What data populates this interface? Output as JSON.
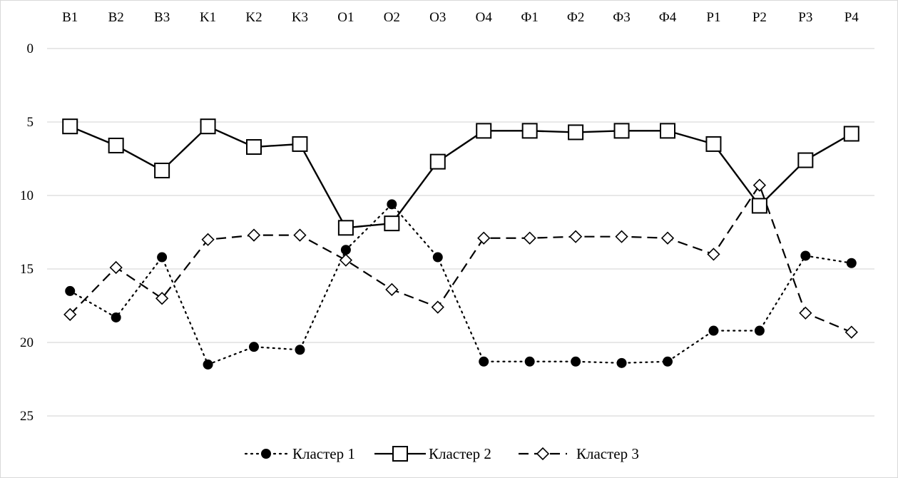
{
  "chart_data": {
    "type": "line",
    "categories": [
      "B1",
      "B2",
      "B3",
      "K1",
      "K2",
      "K3",
      "O1",
      "O2",
      "O3",
      "O4",
      "Ф1",
      "Ф2",
      "Ф3",
      "Ф4",
      "P1",
      "P2",
      "P3",
      "P4"
    ],
    "x_axis_position": "top",
    "y_axis": {
      "reversed": true,
      "ylim": [
        0,
        27.5
      ],
      "ticks": [
        0,
        5,
        10,
        15,
        20,
        25
      ]
    },
    "grid": true,
    "legend_position": "bottom",
    "series": [
      {
        "name": "Кластер 1",
        "line_style": "dotted",
        "marker": "filled-circle",
        "values": [
          16.5,
          18.3,
          14.2,
          21.5,
          20.3,
          20.5,
          13.7,
          10.6,
          14.2,
          21.3,
          21.3,
          21.3,
          21.4,
          21.3,
          19.2,
          19.2,
          14.1,
          14.6
        ]
      },
      {
        "name": "Кластер 2",
        "line_style": "solid",
        "marker": "open-square",
        "values": [
          5.3,
          6.6,
          8.3,
          5.3,
          6.7,
          6.5,
          12.2,
          11.9,
          7.7,
          5.6,
          5.6,
          5.7,
          5.6,
          5.6,
          6.5,
          10.7,
          7.6,
          5.8
        ]
      },
      {
        "name": "Кластер 3",
        "line_style": "dashed",
        "marker": "open-diamond",
        "values": [
          18.1,
          14.9,
          17.0,
          13.0,
          12.7,
          12.7,
          14.4,
          16.4,
          17.6,
          12.9,
          12.9,
          12.8,
          12.8,
          12.9,
          14.0,
          9.3,
          18.0,
          19.3
        ]
      }
    ]
  },
  "colors": {
    "line": "#000000",
    "grid": "#d9d9d9",
    "background": "#ffffff"
  }
}
